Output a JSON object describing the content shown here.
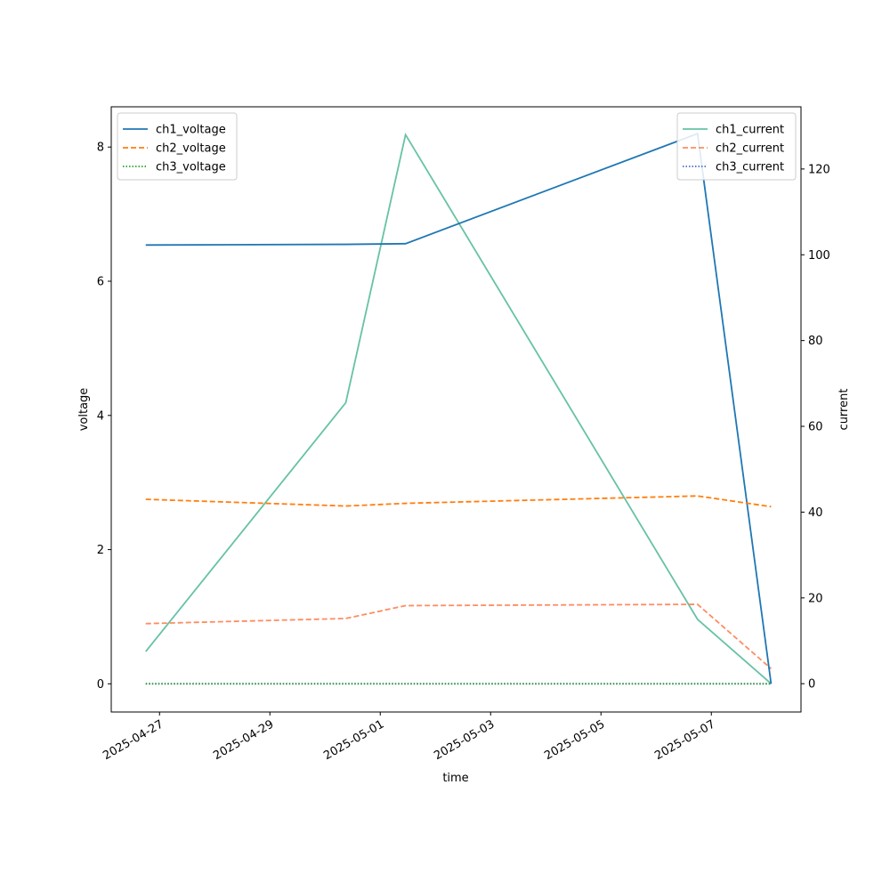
{
  "chart_data": {
    "type": "line",
    "xlabel": "time",
    "ylabel_left": "voltage",
    "ylabel_right": "current",
    "x_ticks": [
      "2025-04-27",
      "2025-04-29",
      "2025-05-01",
      "2025-05-03",
      "2025-05-05",
      "2025-05-07"
    ],
    "y_left_ticks": [
      "0",
      "2",
      "4",
      "6",
      "8"
    ],
    "y_right_ticks": [
      "0",
      "20",
      "40",
      "60",
      "80",
      "100",
      "120"
    ],
    "x": [
      "2025-04-26T18:00",
      "2025-04-30T09:00",
      "2025-05-01T11:00",
      "2025-05-06T18:00",
      "2025-05-08T02:00"
    ],
    "xlim": [
      "2025-04-26T03:00",
      "2025-05-08T15:00"
    ],
    "ylim_left": [
      -0.42,
      8.6
    ],
    "ylim_right": [
      -6.6,
      134.5
    ],
    "grid": false,
    "series_left": [
      {
        "name": "ch1_voltage",
        "values": [
          6.54,
          6.55,
          6.56,
          8.2,
          0.0
        ],
        "color": "#1f77b4",
        "dash": "solid"
      },
      {
        "name": "ch2_voltage",
        "values": [
          2.75,
          2.65,
          2.69,
          2.8,
          2.64
        ],
        "color": "#ff7f0e",
        "dash": "dashed"
      },
      {
        "name": "ch3_voltage",
        "values": [
          0.0,
          0.0,
          0.0,
          0.0,
          0.0
        ],
        "color": "#2ca02c",
        "dash": "dotted"
      }
    ],
    "series_right": [
      {
        "name": "ch1_current",
        "values": [
          7.5,
          65.5,
          128.0,
          15.0,
          0.0
        ],
        "color": "#66c2a5",
        "dash": "solid"
      },
      {
        "name": "ch2_current",
        "values": [
          14.0,
          15.2,
          18.2,
          18.5,
          3.5
        ],
        "color": "#fc8d62",
        "dash": "dashed"
      },
      {
        "name": "ch3_current",
        "values": [
          0.0,
          0.0,
          0.0,
          0.0,
          0.0
        ],
        "color": "#4a6fc4",
        "dash": "dotted"
      }
    ],
    "legend_left_placement": "upper left",
    "legend_right_placement": "upper right"
  }
}
